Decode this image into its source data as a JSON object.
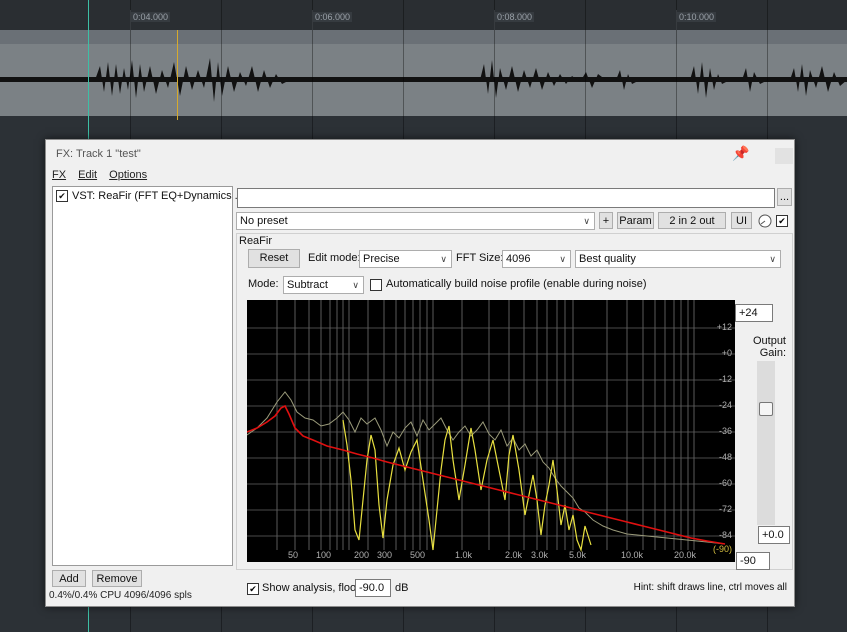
{
  "timeline": {
    "marks": [
      "0:04.000",
      "0:06.000",
      "0:08.000",
      "0:10.000"
    ]
  },
  "fx_window": {
    "title": "FX: Track 1 \"test\"",
    "menu": {
      "fx": "FX",
      "edit": "Edit",
      "options": "Options"
    },
    "plugin_list": [
      {
        "label": "VST: ReaFir (FFT EQ+Dynamics ...",
        "enabled": true
      }
    ],
    "buttons": {
      "add": "Add",
      "remove": "Remove"
    },
    "cpu_status": "0.4%/0.4% CPU 4096/4096 spls",
    "preset": {
      "value": "No preset",
      "plus": "+",
      "param": "Param",
      "io": "2 in 2 out",
      "ui": "UI",
      "dots": "..."
    },
    "plugin": {
      "group_label": "ReaFir",
      "reset": "Reset",
      "edit_mode_label": "Edit mode:",
      "edit_mode_value": "Precise",
      "fft_size_label": "FFT Size:",
      "fft_size_value": "4096",
      "quality_value": "Best quality",
      "mode_label": "Mode:",
      "mode_value": "Subtract",
      "auto_noise_label": "Automatically build noise profile (enable during noise)",
      "auto_noise_checked": false,
      "db_scale": [
        "+12",
        "+0",
        "-12",
        "-24",
        "-36",
        "-48",
        "-60",
        "-72",
        "-84"
      ],
      "floor_marker": "(-90)",
      "freq_scale": [
        "50",
        "100",
        "200",
        "300",
        "500",
        "1.0k",
        "2.0k",
        "3.0k",
        "5.0k",
        "10.0k",
        "20.0k"
      ],
      "output_gain_top": "+24",
      "output_gain_label": "Output Gain:",
      "output_gain_value": "+0.0",
      "floor_field": "-90",
      "show_analysis_label": "Show analysis, floor:",
      "show_analysis_checked": true,
      "analysis_floor_value": "-90.0",
      "analysis_floor_unit": "dB",
      "hint": "Hint: shift draws line, ctrl moves all"
    }
  },
  "colors": {
    "waveform": "#111111",
    "cursor": "#3dbfa6",
    "playhead": "#d6aa2d",
    "eq_curve": "#e01010",
    "analysis": "#e8e040",
    "analysis_dim": "#9a9a7a"
  }
}
